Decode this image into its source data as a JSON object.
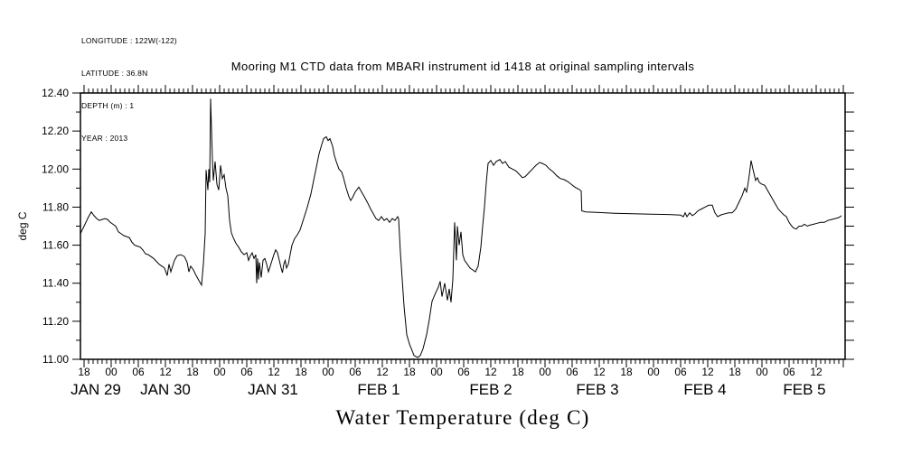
{
  "header": {
    "metadata_lines": [
      "LONGITUDE : 122W(-122)",
      "LATITUDE : 36.8N",
      "DEPTH (m) : 1",
      "YEAR : 2013"
    ]
  },
  "chart_data": {
    "type": "line",
    "title": "Mooring M1 CTD data from MBARI instrument id 1418 at original sampling intervals",
    "xlabel": "Water Temperature (deg C)",
    "ylabel": "deg C",
    "line_color": "#000000",
    "background": "#ffffff",
    "grid": false,
    "legend": "none",
    "x_unit": "hours since 2013-01-29 00:00",
    "xlim": [
      17.2,
      186.4
    ],
    "ylim": [
      11.0,
      12.4
    ],
    "y_major_tick_step": 0.2,
    "y_minor_tick_step": 0.1,
    "y_tick_labels": [
      "11.00",
      "11.20",
      "11.40",
      "11.60",
      "11.80",
      "12.00",
      "12.20",
      "12.40"
    ],
    "x_minor_tick_hours": 1,
    "x_hour_ticks": {
      "start": 18,
      "step": 6,
      "labels": [
        "18",
        "00",
        "06",
        "12",
        "18",
        "00",
        "06",
        "12",
        "18",
        "00",
        "06",
        "12",
        "18",
        "00",
        "06",
        "12",
        "18",
        "00",
        "06",
        "12",
        "18",
        "00",
        "06",
        "12",
        "18",
        "00",
        "06",
        "12"
      ]
    },
    "x_day_labels": [
      {
        "label": "JAN 29",
        "hour": 20.6
      },
      {
        "label": "JAN 30",
        "hour": 36
      },
      {
        "label": "JAN 31",
        "hour": 59.8
      },
      {
        "label": "FEB 1",
        "hour": 83.2
      },
      {
        "label": "FEB 2",
        "hour": 108
      },
      {
        "label": "FEB 3",
        "hour": 131.6
      },
      {
        "label": "FEB 4",
        "hour": 155.4
      },
      {
        "label": "FEB 5",
        "hour": 177.4
      }
    ],
    "series": [
      {
        "name": "water_temperature_deg_C",
        "points": [
          [
            17.2,
            11.66
          ],
          [
            17.6,
            11.68
          ],
          [
            18,
            11.7
          ],
          [
            18.4,
            11.72
          ],
          [
            19,
            11.75
          ],
          [
            19.6,
            11.775
          ],
          [
            20.2,
            11.755
          ],
          [
            20.8,
            11.74
          ],
          [
            21.4,
            11.73
          ],
          [
            22,
            11.735
          ],
          [
            22.6,
            11.74
          ],
          [
            23.2,
            11.735
          ],
          [
            23.8,
            11.72
          ],
          [
            24.4,
            11.71
          ],
          [
            25,
            11.7
          ],
          [
            25.6,
            11.67
          ],
          [
            26.2,
            11.66
          ],
          [
            26.8,
            11.65
          ],
          [
            27.4,
            11.645
          ],
          [
            28,
            11.64
          ],
          [
            28.6,
            11.615
          ],
          [
            29.2,
            11.6
          ],
          [
            29.8,
            11.595
          ],
          [
            30.4,
            11.59
          ],
          [
            31,
            11.575
          ],
          [
            31.6,
            11.555
          ],
          [
            32.2,
            11.55
          ],
          [
            32.8,
            11.54
          ],
          [
            33.4,
            11.53
          ],
          [
            34,
            11.515
          ],
          [
            34.6,
            11.5
          ],
          [
            35.2,
            11.49
          ],
          [
            35.8,
            11.48
          ],
          [
            36.4,
            11.44
          ],
          [
            36.8,
            11.5
          ],
          [
            37.2,
            11.46
          ],
          [
            38,
            11.52
          ],
          [
            38.6,
            11.545
          ],
          [
            39.4,
            11.55
          ],
          [
            40.2,
            11.54
          ],
          [
            40.8,
            11.51
          ],
          [
            41.2,
            11.46
          ],
          [
            41.6,
            11.49
          ],
          [
            42.2,
            11.47
          ],
          [
            42.8,
            11.44
          ],
          [
            43.4,
            11.415
          ],
          [
            44,
            11.39
          ],
          [
            44.4,
            11.5
          ],
          [
            44.8,
            11.66
          ],
          [
            45,
            11.995
          ],
          [
            45.4,
            11.89
          ],
          [
            45.6,
            12
          ],
          [
            45.8,
            11.93
          ],
          [
            46,
            12.37
          ],
          [
            46.4,
            12.05
          ],
          [
            46.6,
            11.94
          ],
          [
            47,
            12.04
          ],
          [
            47.4,
            11.92
          ],
          [
            47.8,
            11.89
          ],
          [
            48.2,
            12.02
          ],
          [
            48.6,
            11.95
          ],
          [
            49,
            11.97
          ],
          [
            49.4,
            11.9
          ],
          [
            49.8,
            11.86
          ],
          [
            50.2,
            11.73
          ],
          [
            50.6,
            11.665
          ],
          [
            51,
            11.64
          ],
          [
            51.6,
            11.61
          ],
          [
            52.2,
            11.59
          ],
          [
            52.8,
            11.565
          ],
          [
            53.4,
            11.55
          ],
          [
            54,
            11.56
          ],
          [
            54.4,
            11.52
          ],
          [
            54.8,
            11.545
          ],
          [
            55.2,
            11.56
          ],
          [
            55.6,
            11.53
          ],
          [
            56,
            11.55
          ],
          [
            56.2,
            11.4
          ],
          [
            56.4,
            11.53
          ],
          [
            56.6,
            11.42
          ],
          [
            56.8,
            11.51
          ],
          [
            57.2,
            11.43
          ],
          [
            57.6,
            11.52
          ],
          [
            58,
            11.53
          ],
          [
            58.4,
            11.5
          ],
          [
            58.8,
            11.46
          ],
          [
            59.2,
            11.49
          ],
          [
            59.6,
            11.52
          ],
          [
            60,
            11.55
          ],
          [
            60.4,
            11.575
          ],
          [
            60.8,
            11.56
          ],
          [
            61.2,
            11.52
          ],
          [
            61.6,
            11.48
          ],
          [
            61.9,
            11.455
          ],
          [
            62.2,
            11.5
          ],
          [
            62.5,
            11.52
          ],
          [
            62.8,
            11.48
          ],
          [
            63.2,
            11.5
          ],
          [
            63.6,
            11.55
          ],
          [
            64,
            11.6
          ],
          [
            64.6,
            11.635
          ],
          [
            65.2,
            11.655
          ],
          [
            65.8,
            11.68
          ],
          [
            66.6,
            11.74
          ],
          [
            67.4,
            11.8
          ],
          [
            68.2,
            11.87
          ],
          [
            68.8,
            11.94
          ],
          [
            69.4,
            12.01
          ],
          [
            70,
            12.08
          ],
          [
            70.6,
            12.13
          ],
          [
            71,
            12.16
          ],
          [
            71.6,
            12.17
          ],
          [
            72,
            12.15
          ],
          [
            72.4,
            12.16
          ],
          [
            73,
            12.12
          ],
          [
            73.4,
            12.07
          ],
          [
            73.8,
            12.04
          ],
          [
            74.4,
            12
          ],
          [
            75,
            11.985
          ],
          [
            75.4,
            11.955
          ],
          [
            76,
            11.9
          ],
          [
            76.6,
            11.855
          ],
          [
            77,
            11.835
          ],
          [
            77.4,
            11.85
          ],
          [
            78,
            11.88
          ],
          [
            78.8,
            11.905
          ],
          [
            79.4,
            11.88
          ],
          [
            80,
            11.855
          ],
          [
            80.8,
            11.82
          ],
          [
            81.4,
            11.79
          ],
          [
            82,
            11.765
          ],
          [
            82.6,
            11.74
          ],
          [
            83.2,
            11.73
          ],
          [
            83.8,
            11.75
          ],
          [
            84.4,
            11.73
          ],
          [
            85,
            11.74
          ],
          [
            85.6,
            11.72
          ],
          [
            86.2,
            11.74
          ],
          [
            86.8,
            11.73
          ],
          [
            87.4,
            11.75
          ],
          [
            87.6,
            11.74
          ],
          [
            88,
            11.56
          ],
          [
            88.4,
            11.42
          ],
          [
            88.8,
            11.28
          ],
          [
            89.4,
            11.13
          ],
          [
            90,
            11.08
          ],
          [
            90.6,
            11.045
          ],
          [
            91,
            11.02
          ],
          [
            91.8,
            11.01
          ],
          [
            92.4,
            11.02
          ],
          [
            93,
            11.055
          ],
          [
            93.8,
            11.13
          ],
          [
            94.4,
            11.21
          ],
          [
            95,
            11.305
          ],
          [
            95.8,
            11.35
          ],
          [
            96.4,
            11.38
          ],
          [
            96.8,
            11.41
          ],
          [
            97.2,
            11.33
          ],
          [
            97.8,
            11.4
          ],
          [
            98.4,
            11.31
          ],
          [
            98.8,
            11.37
          ],
          [
            99.2,
            11.3
          ],
          [
            99.6,
            11.42
          ],
          [
            100,
            11.72
          ],
          [
            100.4,
            11.52
          ],
          [
            100.6,
            11.7
          ],
          [
            101,
            11.6
          ],
          [
            101.4,
            11.67
          ],
          [
            101.8,
            11.55
          ],
          [
            102.2,
            11.52
          ],
          [
            102.8,
            11.5
          ],
          [
            103.4,
            11.48
          ],
          [
            104,
            11.47
          ],
          [
            104.6,
            11.46
          ],
          [
            105.2,
            11.49
          ],
          [
            105.8,
            11.59
          ],
          [
            106.2,
            11.7
          ],
          [
            106.6,
            11.8
          ],
          [
            107,
            11.93
          ],
          [
            107.4,
            12.03
          ],
          [
            108,
            12.045
          ],
          [
            108.6,
            12.02
          ],
          [
            109.2,
            12.04
          ],
          [
            110,
            12.05
          ],
          [
            110.6,
            12.03
          ],
          [
            111.2,
            12.04
          ],
          [
            112,
            12.01
          ],
          [
            112.8,
            12
          ],
          [
            113.6,
            11.99
          ],
          [
            114.4,
            11.97
          ],
          [
            115,
            11.955
          ],
          [
            115.6,
            11.96
          ],
          [
            116.4,
            11.98
          ],
          [
            117.2,
            12
          ],
          [
            118,
            12.02
          ],
          [
            118.8,
            12.035
          ],
          [
            119.4,
            12.03
          ],
          [
            120.2,
            12.02
          ],
          [
            121,
            12
          ],
          [
            121.8,
            11.985
          ],
          [
            122.6,
            11.965
          ],
          [
            123.4,
            11.95
          ],
          [
            124.2,
            11.945
          ],
          [
            125,
            11.935
          ],
          [
            125.8,
            11.92
          ],
          [
            126.6,
            11.905
          ],
          [
            127.4,
            11.895
          ],
          [
            128,
            11.885
          ],
          [
            128.15,
            11.78
          ],
          [
            129,
            11.775
          ],
          [
            131.4,
            11.772
          ],
          [
            135.4,
            11.768
          ],
          [
            139.4,
            11.765
          ],
          [
            143.4,
            11.763
          ],
          [
            147.4,
            11.761
          ],
          [
            150,
            11.758
          ],
          [
            150.6,
            11.75
          ],
          [
            151,
            11.77
          ],
          [
            151.4,
            11.75
          ],
          [
            152,
            11.77
          ],
          [
            152.6,
            11.755
          ],
          [
            153.2,
            11.765
          ],
          [
            153.8,
            11.78
          ],
          [
            154.6,
            11.79
          ],
          [
            155.4,
            11.8
          ],
          [
            156.2,
            11.81
          ],
          [
            157,
            11.81
          ],
          [
            157.6,
            11.77
          ],
          [
            158.2,
            11.75
          ],
          [
            159,
            11.76
          ],
          [
            159.8,
            11.765
          ],
          [
            160.6,
            11.77
          ],
          [
            161.4,
            11.77
          ],
          [
            162.2,
            11.79
          ],
          [
            163,
            11.83
          ],
          [
            163.6,
            11.86
          ],
          [
            164.2,
            11.9
          ],
          [
            164.6,
            11.88
          ],
          [
            164.9,
            11.92
          ],
          [
            165.2,
            11.97
          ],
          [
            165.6,
            12.045
          ],
          [
            166,
            12
          ],
          [
            166.3,
            11.97
          ],
          [
            166.6,
            11.94
          ],
          [
            167,
            11.955
          ],
          [
            167.4,
            11.93
          ],
          [
            168,
            11.92
          ],
          [
            168.6,
            11.915
          ],
          [
            169.2,
            11.89
          ],
          [
            169.8,
            11.865
          ],
          [
            170.4,
            11.84
          ],
          [
            171,
            11.815
          ],
          [
            171.6,
            11.79
          ],
          [
            172.2,
            11.775
          ],
          [
            172.8,
            11.76
          ],
          [
            173.4,
            11.75
          ],
          [
            174,
            11.72
          ],
          [
            174.6,
            11.7
          ],
          [
            175,
            11.69
          ],
          [
            175.6,
            11.685
          ],
          [
            176.2,
            11.7
          ],
          [
            176.8,
            11.7
          ],
          [
            177.4,
            11.71
          ],
          [
            178,
            11.7
          ],
          [
            178.6,
            11.705
          ],
          [
            179.4,
            11.71
          ],
          [
            180.2,
            11.715
          ],
          [
            181,
            11.72
          ],
          [
            181.8,
            11.72
          ],
          [
            182.6,
            11.73
          ],
          [
            183.4,
            11.735
          ],
          [
            184.2,
            11.74
          ],
          [
            185,
            11.745
          ],
          [
            185.6,
            11.755
          ]
        ]
      }
    ]
  }
}
